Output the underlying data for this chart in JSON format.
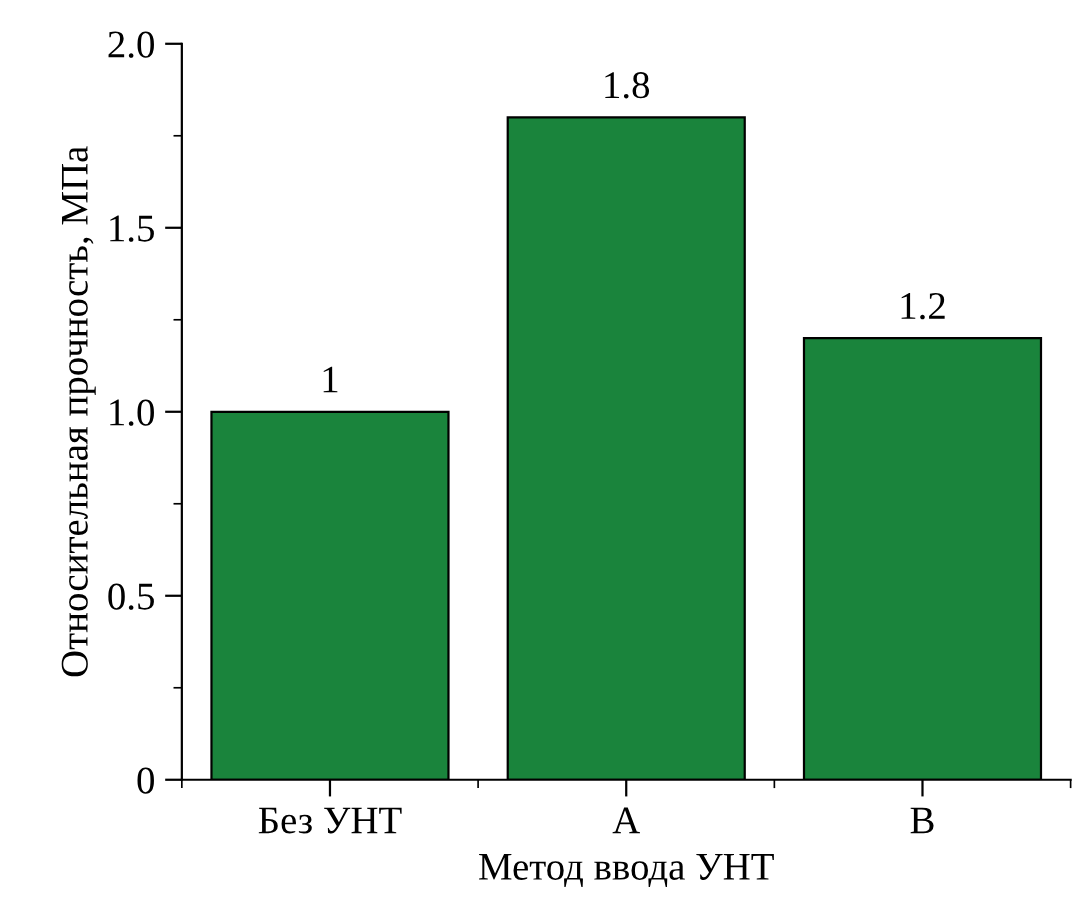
{
  "chart_data": {
    "type": "bar",
    "xlabel": "Метод ввода УНТ",
    "ylabel": "Относительная прочность, МПа",
    "categories": [
      "Без УНТ",
      "A",
      "B"
    ],
    "series": [
      {
        "color": "#1a843c",
        "values": [
          1,
          1.8,
          1.2
        ]
      }
    ],
    "value_labels": [
      "1",
      "1.8",
      "1.2"
    ],
    "ylim": [
      0,
      2.0
    ],
    "yticks": [
      0,
      {
        "value": 0.5,
        "label": "0.5"
      },
      {
        "value": 1.0,
        "label": "1.0"
      },
      {
        "value": 1.5,
        "label": "1.5"
      },
      {
        "value": 2.0,
        "label": "2.0"
      }
    ],
    "grid": false,
    "legend": false
  }
}
